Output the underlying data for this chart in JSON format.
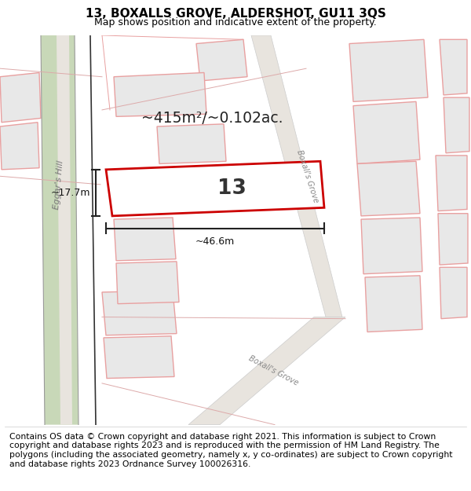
{
  "title": "13, BOXALLS GROVE, ALDERSHOT, GU11 3QS",
  "subtitle": "Map shows position and indicative extent of the property.",
  "footer": "Contains OS data © Crown copyright and database right 2021. This information is subject to Crown copyright and database rights 2023 and is reproduced with the permission of HM Land Registry. The polygons (including the associated geometry, namely x, y co-ordinates) are subject to Crown copyright and database rights 2023 Ordnance Survey 100026316.",
  "area_label": "~415m²/~0.102ac.",
  "property_number": "13",
  "dim_width": "~46.6m",
  "dim_height": "~17.7m",
  "map_bg": "#ffffff",
  "prop_fill": "#e8e8e8",
  "prop_edge": "#e8a0a0",
  "highlight_fill": "#ffffff",
  "highlight_edge": "#cc0000",
  "green_fill": "#c8d8b8",
  "road_line": "#aaaaaa",
  "title_fontsize": 11,
  "subtitle_fontsize": 9,
  "footer_fontsize": 7.8
}
